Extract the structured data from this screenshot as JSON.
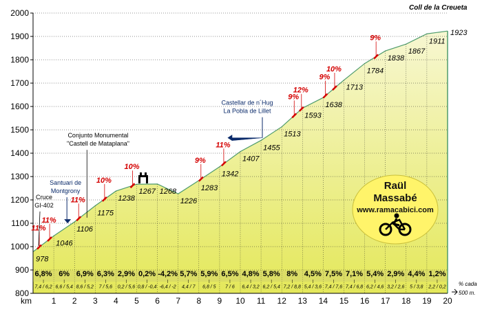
{
  "colors": {
    "fill_top": "#f7f7d2",
    "fill_bottom": "#e4e85a",
    "profile_edge": "#4e9b6c",
    "grid": "#222222",
    "steep": "#d40000",
    "band": "#c8c870",
    "logo_bg": "#fff46a",
    "pointer": "#0a2a6a"
  },
  "chart_data": {
    "type": "area",
    "title": "Coll de la Creueta",
    "xlabel": "km",
    "ylabel": "",
    "xlim": [
      0,
      20
    ],
    "ylim": [
      800,
      2000
    ],
    "y_ticks": [
      800,
      900,
      1000,
      1100,
      1200,
      1300,
      1400,
      1500,
      1600,
      1700,
      1800,
      1900,
      2000
    ],
    "x_ticks": [
      1,
      2,
      3,
      4,
      5,
      6,
      7,
      8,
      9,
      10,
      11,
      12,
      13,
      14,
      15,
      16,
      17,
      18,
      19,
      20
    ],
    "x_axis_prefix": "km",
    "altitudes": [
      978,
      1046,
      1106,
      1175,
      1238,
      1267,
      1268,
      1226,
      1283,
      1342,
      1407,
      1455,
      1513,
      1593,
      1638,
      1713,
      1784,
      1838,
      1867,
      1911,
      1923
    ],
    "grades": [
      "6,8%",
      "6%",
      "6,9%",
      "6,3%",
      "2,9%",
      "0,2%",
      "-4,2%",
      "5,7%",
      "5,9%",
      "6,5%",
      "4,8%",
      "5,8%",
      "8%",
      "4,5%",
      "7,5%",
      "7,1%",
      "5,4%",
      "2,9%",
      "4,4%",
      "1,2%"
    ],
    "sub_grades": [
      "7,4 / 6,2",
      "6,6 / 5,4",
      "8,6 / 5,2",
      "7 / 5,6",
      "0,2 / 5,6",
      "0,8 / -0,4",
      "-6,4 / -2",
      "4,4 / 7",
      "6,8 / 5",
      "7 / 6",
      "6,4 / 3,2",
      "6,2 / 5,4",
      "7,2 / 8,8",
      "5,4 / 3,6",
      "7,4 / 7,6",
      "7,4 / 6,8",
      "6,2 / 4,6",
      "3,2 / 2,6",
      "5 / 3,8",
      "2,2 / 0,2"
    ],
    "steep_sections": [
      {
        "label": "11%",
        "km": 0.3
      },
      {
        "label": "11%",
        "km": 0.8
      },
      {
        "label": "11%",
        "km": 2.2
      },
      {
        "label": "10%",
        "km": 3.45
      },
      {
        "label": "10%",
        "km": 4.8
      },
      {
        "label": "9%",
        "km": 8.1
      },
      {
        "label": "11%",
        "km": 9.2
      },
      {
        "label": "9%",
        "km": 12.6
      },
      {
        "label": "12%",
        "km": 12.95
      },
      {
        "label": "9%",
        "km": 14.1
      },
      {
        "label": "10%",
        "km": 14.55
      },
      {
        "label": "9%",
        "km": 16.55
      }
    ],
    "annotations": [
      {
        "lines": [
          "Cruce",
          "GI-402"
        ],
        "km": 0.2
      },
      {
        "lines": [
          "Santuari de",
          "Montgrony"
        ],
        "km": 1.7
      },
      {
        "lines": [
          "Conjunto Monumental",
          "\"Castell de Mataplana\""
        ],
        "km": 4.8
      },
      {
        "lines": [
          "Castellar de n´Hug",
          "La Pobla de Lillet"
        ],
        "km": 10.0
      }
    ],
    "footnote": [
      "% cada",
      "500 m."
    ]
  },
  "logo": {
    "name_line1": "Raül",
    "name_line2": "Massabé",
    "url": "www.ramacabici.com",
    "icon": "cyclist-icon"
  }
}
